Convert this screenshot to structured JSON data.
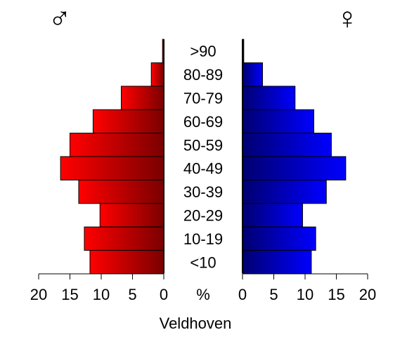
{
  "chart_data": {
    "type": "bar",
    "subtype": "population-pyramid",
    "title": "",
    "xlabel": "Veldhoven",
    "center_axis_label": "%",
    "categories": [
      ">90",
      "80-89",
      "70-79",
      "60-69",
      "50-59",
      "40-49",
      "30-39",
      "20-29",
      "10-19",
      "<10"
    ],
    "xlim": [
      0,
      20
    ],
    "ticks": [
      0,
      5,
      10,
      15,
      20
    ],
    "tick_labels": [
      "0",
      "5",
      "10",
      "15",
      "20"
    ],
    "grid": false,
    "series": [
      {
        "name": "male",
        "symbol": "♂",
        "color": "#ff0000",
        "color_dark": "#7a0000",
        "values": [
          0.2,
          2.0,
          6.8,
          11.3,
          15.0,
          16.5,
          13.6,
          10.2,
          12.7,
          11.8
        ]
      },
      {
        "name": "female",
        "symbol": "♀",
        "color": "#0000ff",
        "color_dark": "#000070",
        "values": [
          0.2,
          3.2,
          8.4,
          11.4,
          14.2,
          16.5,
          13.4,
          9.6,
          11.7,
          11.0
        ]
      }
    ]
  }
}
